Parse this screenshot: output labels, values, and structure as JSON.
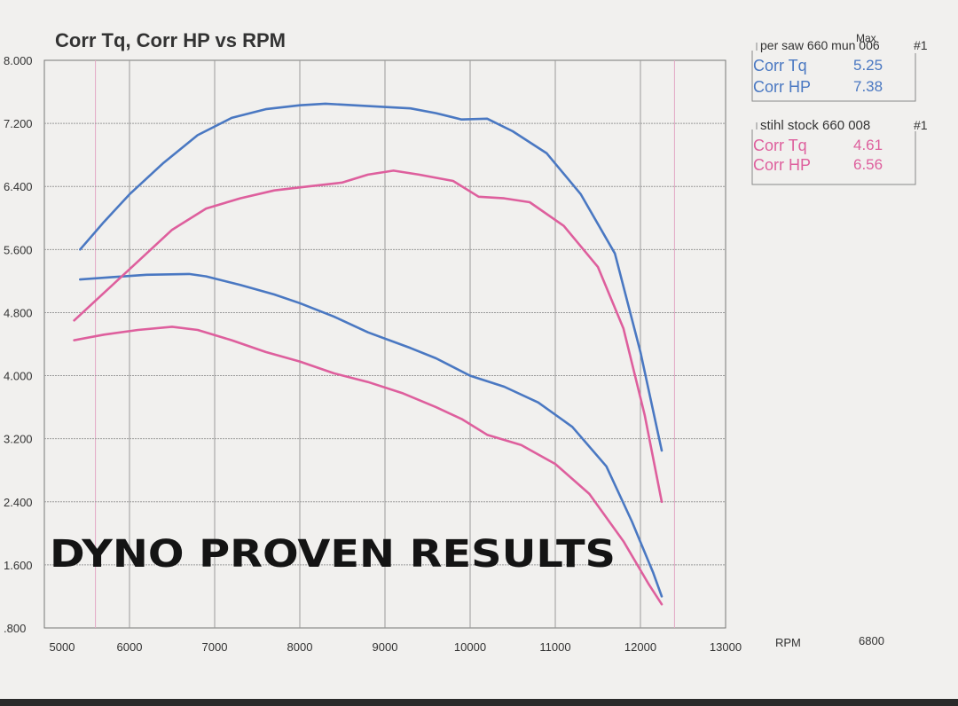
{
  "chart_data": {
    "type": "line",
    "title": "Corr Tq, Corr HP vs RPM",
    "xlabel": "RPM",
    "corner_value": "6800",
    "xlim": [
      5000,
      13000
    ],
    "ylim": [
      0.8,
      8.0
    ],
    "x_ticks": [
      "5000",
      "6000",
      "7000",
      "8000",
      "9000",
      "10000",
      "11000",
      "12000",
      "13000"
    ],
    "y_ticks": [
      ".800",
      "1.600",
      "2.400",
      "3.200",
      "4.000",
      "4.800",
      "5.600",
      "6.400",
      "7.200",
      "8.000"
    ],
    "colors": {
      "blue": "#4a78c2",
      "pink": "#de5f9d"
    },
    "legend": {
      "max_header": "Max",
      "runs": [
        {
          "title": "per saw 660 mun 006",
          "run_no": "#1",
          "color": "#4a78c2",
          "rows": [
            {
              "label": "Corr Tq",
              "value": "5.25"
            },
            {
              "label": "Corr HP",
              "value": "7.38"
            }
          ]
        },
        {
          "title": "stihl stock 660 008",
          "run_no": "#1",
          "color": "#de5f9d",
          "rows": [
            {
              "label": "Corr Tq",
              "value": "4.61"
            },
            {
              "label": "Corr HP",
              "value": "6.56"
            }
          ]
        }
      ]
    },
    "overlay_text": "DYNO PROVEN RESULTS",
    "series": [
      {
        "name": "Corr HP",
        "run": "per saw 660 mun 006",
        "color": "#4a78c2",
        "x": [
          5420,
          5700,
          6000,
          6400,
          6800,
          7200,
          7600,
          8000,
          8300,
          8800,
          9300,
          9600,
          9900,
          10200,
          10500,
          10900,
          11300,
          11700,
          12000,
          12250
        ],
        "y": [
          5.6,
          5.95,
          6.3,
          6.7,
          7.05,
          7.27,
          7.38,
          7.43,
          7.45,
          7.42,
          7.39,
          7.33,
          7.25,
          7.26,
          7.1,
          6.82,
          6.3,
          5.55,
          4.3,
          3.05
        ]
      },
      {
        "name": "Corr Tq",
        "run": "per saw 660 mun 006",
        "color": "#4a78c2",
        "x": [
          5420,
          5800,
          6200,
          6700,
          6900,
          7300,
          7700,
          8000,
          8400,
          8800,
          9300,
          9600,
          10000,
          10400,
          10800,
          11200,
          11600,
          11900,
          12150,
          12250
        ],
        "y": [
          5.22,
          5.25,
          5.28,
          5.29,
          5.26,
          5.15,
          5.03,
          4.92,
          4.75,
          4.55,
          4.35,
          4.22,
          4.0,
          3.86,
          3.66,
          3.35,
          2.85,
          2.15,
          1.5,
          1.2
        ]
      },
      {
        "name": "Corr HP",
        "run": "stihl stock 660 008",
        "color": "#de5f9d",
        "x": [
          5350,
          5700,
          6100,
          6500,
          6900,
          7300,
          7700,
          8100,
          8500,
          8800,
          9100,
          9400,
          9800,
          10100,
          10400,
          10700,
          11100,
          11500,
          11800,
          12050,
          12250
        ],
        "y": [
          4.7,
          5.05,
          5.45,
          5.85,
          6.12,
          6.25,
          6.35,
          6.4,
          6.45,
          6.55,
          6.6,
          6.55,
          6.47,
          6.27,
          6.25,
          6.2,
          5.9,
          5.38,
          4.6,
          3.5,
          2.4
        ]
      },
      {
        "name": "Corr Tq",
        "run": "stihl stock 660 008",
        "color": "#de5f9d",
        "x": [
          5350,
          5700,
          6100,
          6500,
          6800,
          7200,
          7600,
          8000,
          8400,
          8800,
          9200,
          9600,
          9900,
          10200,
          10600,
          11000,
          11400,
          11800,
          12100,
          12250
        ],
        "y": [
          4.45,
          4.52,
          4.58,
          4.62,
          4.58,
          4.45,
          4.3,
          4.18,
          4.03,
          3.92,
          3.78,
          3.6,
          3.45,
          3.25,
          3.12,
          2.88,
          2.5,
          1.9,
          1.35,
          1.1
        ]
      }
    ]
  }
}
